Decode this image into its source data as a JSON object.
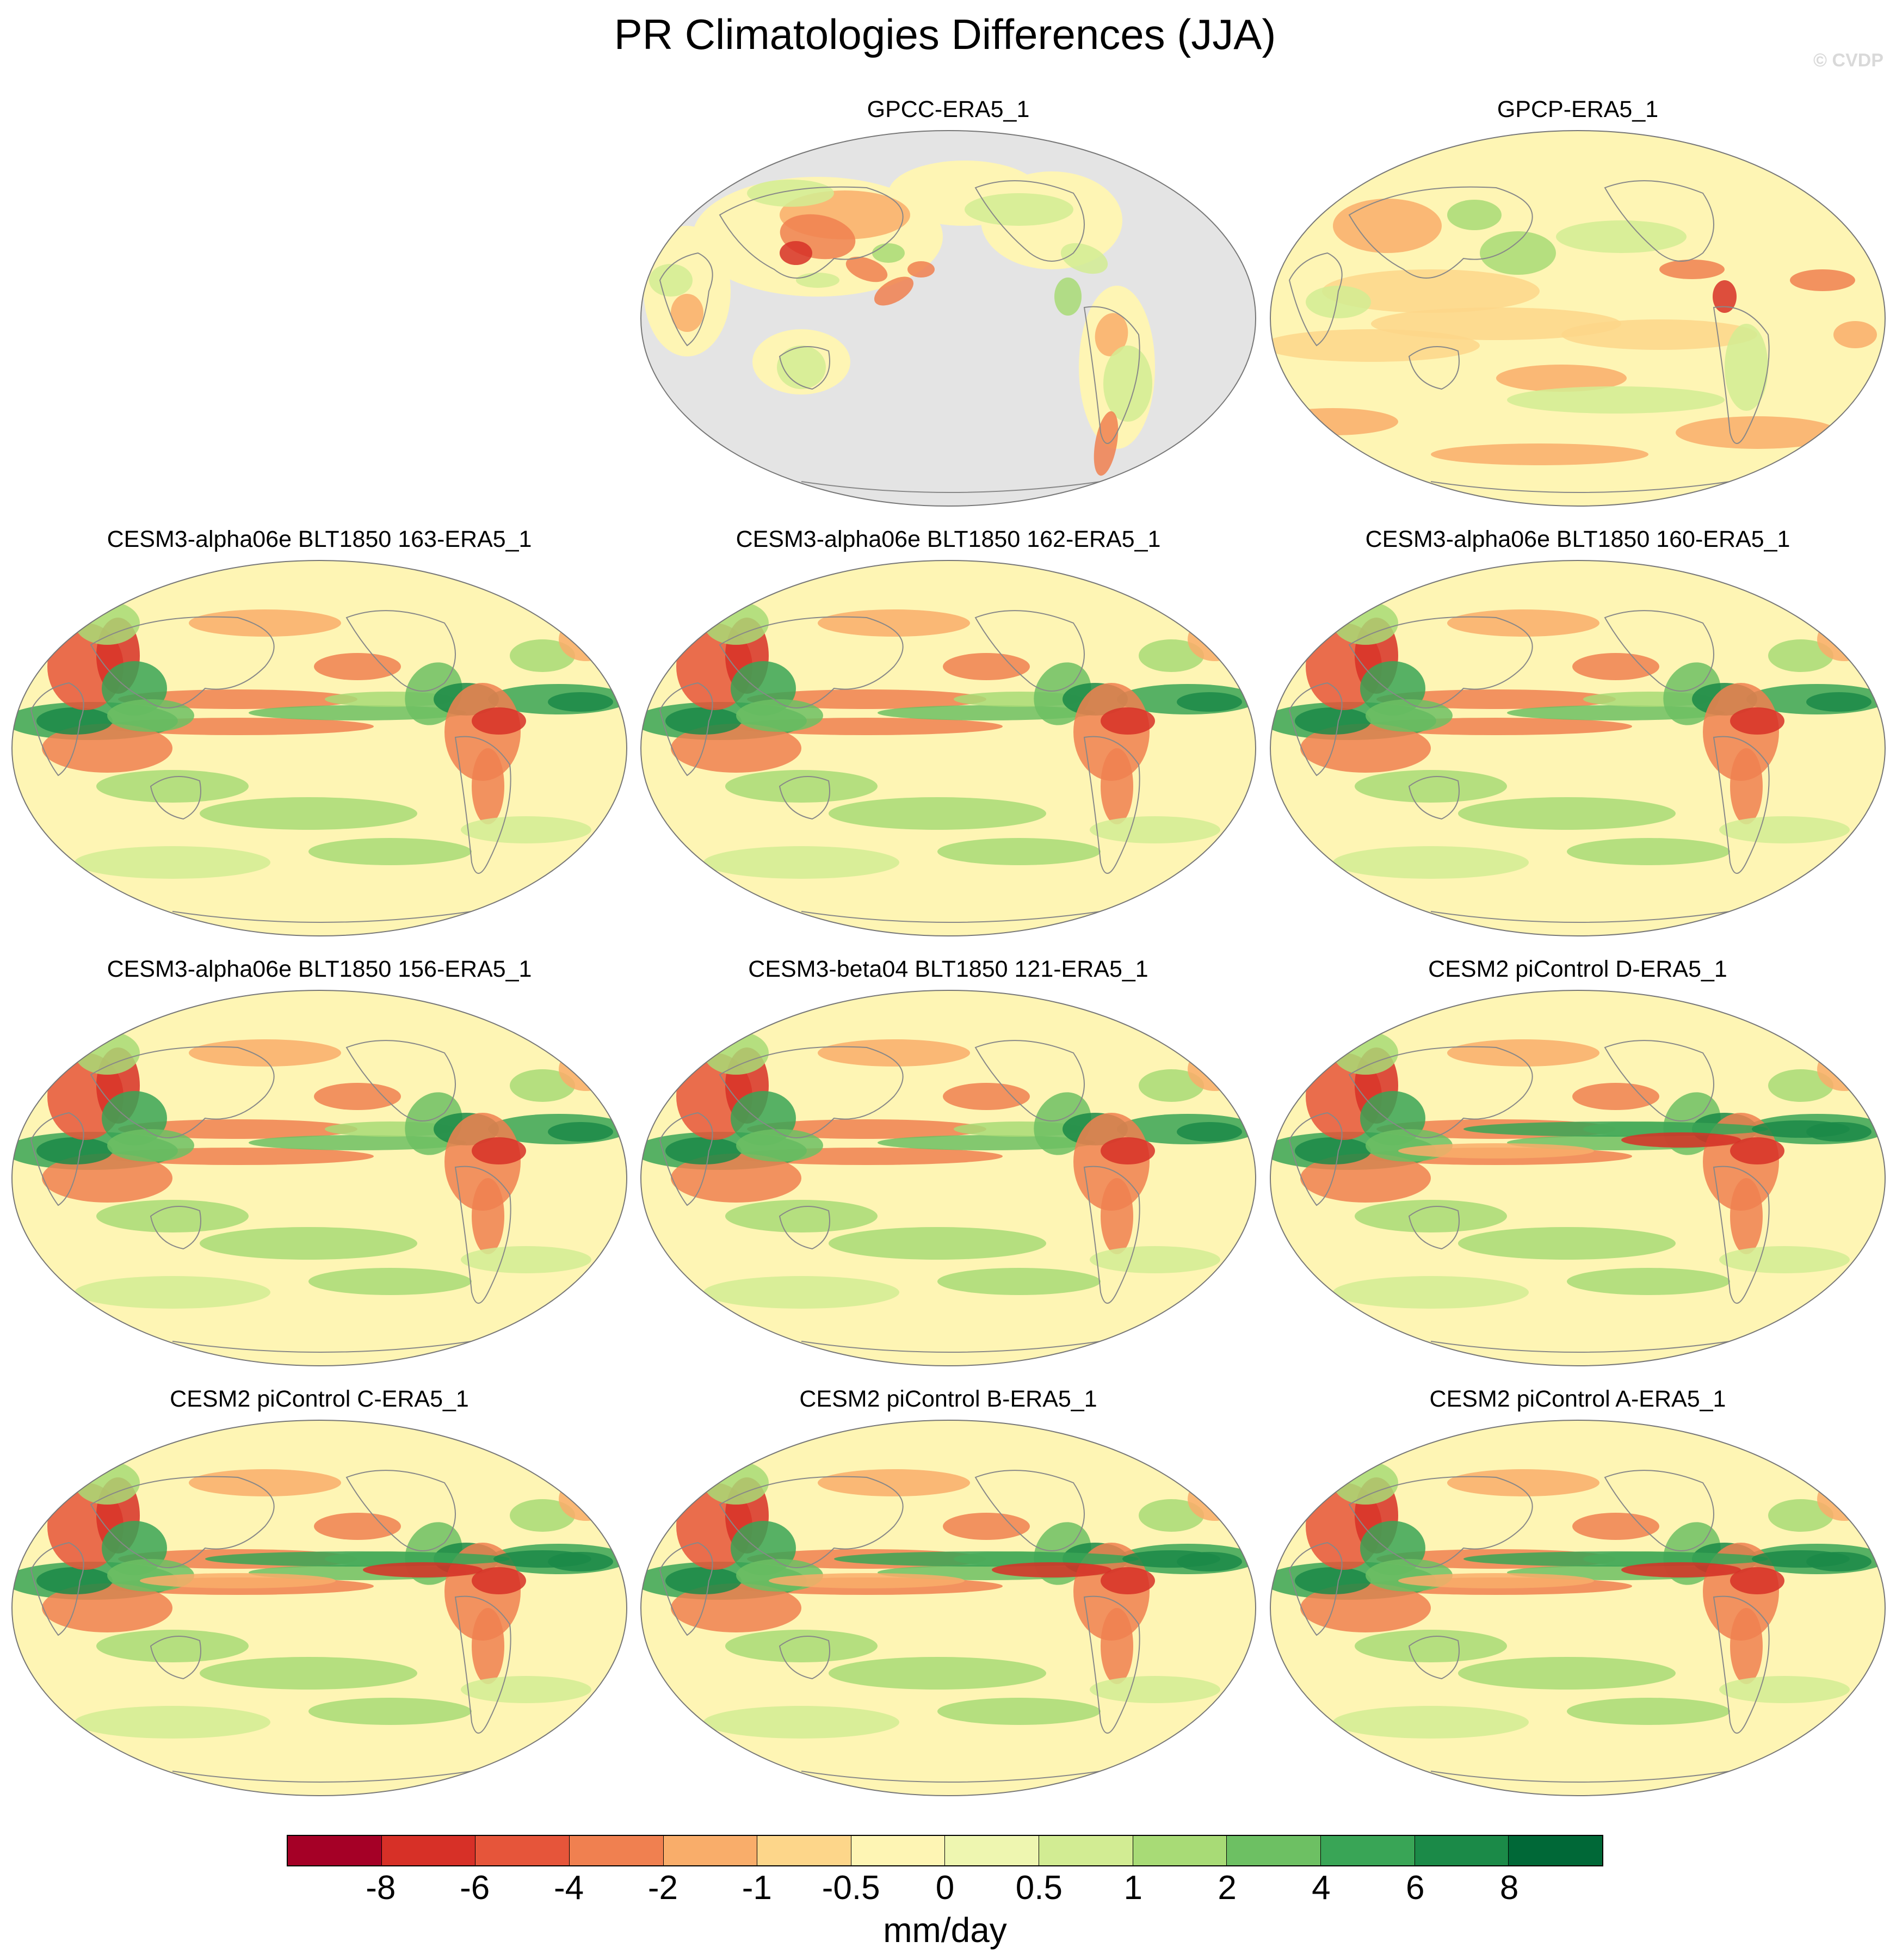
{
  "title": "PR Climatologies Differences (JJA)",
  "watermark": "© CVDP",
  "panels": [
    {
      "label": "GPCC-ERA5_1",
      "kind": "land"
    },
    {
      "label": "GPCP-ERA5_1",
      "kind": "obs"
    },
    {
      "label": "CESM3-alpha06e BLT1850 163-ERA5_1",
      "kind": "model"
    },
    {
      "label": "CESM3-alpha06e BLT1850 162-ERA5_1",
      "kind": "model"
    },
    {
      "label": "CESM3-alpha06e BLT1850 160-ERA5_1",
      "kind": "model"
    },
    {
      "label": "CESM3-alpha06e BLT1850 156-ERA5_1",
      "kind": "model"
    },
    {
      "label": "CESM3-beta04 BLT1850 121-ERA5_1",
      "kind": "model"
    },
    {
      "label": "CESM2 piControl D-ERA5_1",
      "kind": "model2"
    },
    {
      "label": "CESM2 piControl C-ERA5_1",
      "kind": "model2"
    },
    {
      "label": "CESM2 piControl B-ERA5_1",
      "kind": "model2"
    },
    {
      "label": "CESM2 piControl A-ERA5_1",
      "kind": "model2"
    }
  ],
  "colorbar": {
    "labels": [
      "-8",
      "-6",
      "-4",
      "-2",
      "-1",
      "-0.5",
      "0",
      "0.5",
      "1",
      "2",
      "4",
      "6",
      "8"
    ],
    "colors": [
      "#a50026",
      "#d73027",
      "#e6553a",
      "#f08050",
      "#f9ad6a",
      "#fdd68a",
      "#fef5b4",
      "#eef6b0",
      "#d2ec93",
      "#a8db76",
      "#6dc063",
      "#39a556",
      "#1b8a48",
      "#006837"
    ],
    "units": "mm/day"
  },
  "colors": {
    "neutral": "#fef5b4",
    "missing": "#e4e4e4",
    "outline": "#888888"
  }
}
